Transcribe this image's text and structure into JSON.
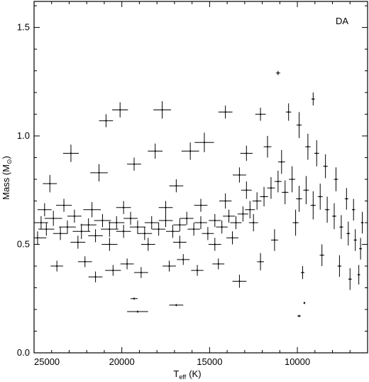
{
  "chart_data": {
    "type": "scatter",
    "title": "",
    "panel_label": "DA",
    "xlabel": {
      "main": "T",
      "sub": "eff",
      "unit": "(K)"
    },
    "ylabel": {
      "main": "Mass (M",
      "sun": "⊙",
      "close": ")"
    },
    "xlim": [
      25000,
      6000
    ],
    "x_reversed": true,
    "ylim": [
      0.0,
      1.62
    ],
    "x_ticks": [
      25000,
      20000,
      15000,
      10000
    ],
    "x_tick_labels": [
      "25000",
      "20000",
      "15000",
      "10000"
    ],
    "y_ticks": [
      0.0,
      0.5,
      1.0,
      1.5
    ],
    "y_tick_labels": [
      "0.0",
      "0.5",
      "1.0",
      "1.5"
    ],
    "error_bars": "x and y",
    "grid": false,
    "series": [
      {
        "name": "",
        "points": [
          [
            24600,
            0.6,
            400,
            0.03
          ],
          [
            24300,
            0.57,
            450,
            0.03
          ],
          [
            23900,
            0.62,
            500,
            0.035
          ],
          [
            23500,
            0.55,
            420,
            0.03
          ],
          [
            23100,
            0.58,
            480,
            0.03
          ],
          [
            22700,
            0.63,
            400,
            0.03
          ],
          [
            22300,
            0.56,
            500,
            0.035
          ],
          [
            21900,
            0.59,
            450,
            0.03
          ],
          [
            21500,
            0.54,
            420,
            0.03
          ],
          [
            21100,
            0.61,
            480,
            0.03
          ],
          [
            20700,
            0.57,
            500,
            0.035
          ],
          [
            20300,
            0.6,
            450,
            0.03
          ],
          [
            19900,
            0.56,
            420,
            0.03
          ],
          [
            19500,
            0.62,
            400,
            0.03
          ],
          [
            19100,
            0.58,
            450,
            0.03
          ],
          [
            18700,
            0.55,
            420,
            0.03
          ],
          [
            18300,
            0.6,
            400,
            0.03
          ],
          [
            17900,
            0.57,
            380,
            0.03
          ],
          [
            17500,
            0.61,
            400,
            0.03
          ],
          [
            17100,
            0.56,
            380,
            0.03
          ],
          [
            16700,
            0.59,
            360,
            0.03
          ],
          [
            16300,
            0.62,
            380,
            0.03
          ],
          [
            15900,
            0.57,
            350,
            0.03
          ],
          [
            15500,
            0.6,
            360,
            0.03
          ],
          [
            15100,
            0.55,
            340,
            0.03
          ],
          [
            14700,
            0.61,
            350,
            0.03
          ],
          [
            14300,
            0.58,
            330,
            0.03
          ],
          [
            13900,
            0.63,
            340,
            0.03
          ],
          [
            13500,
            0.6,
            320,
            0.03
          ],
          [
            13100,
            0.64,
            300,
            0.035
          ],
          [
            12700,
            0.66,
            280,
            0.04
          ],
          [
            12300,
            0.7,
            250,
            0.04
          ],
          [
            11900,
            0.72,
            230,
            0.045
          ],
          [
            11500,
            0.76,
            220,
            0.05
          ],
          [
            11100,
            0.79,
            200,
            0.05
          ],
          [
            10700,
            0.74,
            190,
            0.055
          ],
          [
            10300,
            0.8,
            180,
            0.06
          ],
          [
            9900,
            0.71,
            170,
            0.06
          ],
          [
            9500,
            0.75,
            160,
            0.065
          ],
          [
            9100,
            0.68,
            150,
            0.065
          ],
          [
            8700,
            0.72,
            140,
            0.06
          ],
          [
            8300,
            0.66,
            130,
            0.06
          ],
          [
            7900,
            0.63,
            120,
            0.06
          ],
          [
            7500,
            0.58,
            110,
            0.055
          ],
          [
            7100,
            0.55,
            100,
            0.055
          ],
          [
            6700,
            0.52,
            90,
            0.05
          ],
          [
            6400,
            0.48,
            80,
            0.05
          ],
          [
            24100,
            0.78,
            400,
            0.04
          ],
          [
            22900,
            0.92,
            450,
            0.04
          ],
          [
            21300,
            0.83,
            500,
            0.04
          ],
          [
            20900,
            1.07,
            400,
            0.03
          ],
          [
            20100,
            1.12,
            450,
            0.035
          ],
          [
            19300,
            0.87,
            400,
            0.03
          ],
          [
            18100,
            0.93,
            420,
            0.035
          ],
          [
            17700,
            1.12,
            500,
            0.04
          ],
          [
            16900,
            0.77,
            400,
            0.03
          ],
          [
            16100,
            0.93,
            500,
            0.04
          ],
          [
            15300,
            0.97,
            550,
            0.045
          ],
          [
            14100,
            1.11,
            400,
            0.03
          ],
          [
            13300,
            0.82,
            380,
            0.035
          ],
          [
            12900,
            0.92,
            350,
            0.035
          ],
          [
            12100,
            1.1,
            300,
            0.03
          ],
          [
            11100,
            1.29,
            120,
            0.01
          ],
          [
            10500,
            1.11,
            150,
            0.04
          ],
          [
            9100,
            1.17,
            100,
            0.03
          ],
          [
            23700,
            0.4,
            350,
            0.025
          ],
          [
            22100,
            0.42,
            400,
            0.025
          ],
          [
            21500,
            0.35,
            400,
            0.025
          ],
          [
            20500,
            0.38,
            450,
            0.025
          ],
          [
            19700,
            0.41,
            380,
            0.025
          ],
          [
            18900,
            0.37,
            400,
            0.025
          ],
          [
            17300,
            0.4,
            380,
            0.025
          ],
          [
            16500,
            0.43,
            360,
            0.025
          ],
          [
            15700,
            0.38,
            350,
            0.025
          ],
          [
            14500,
            0.41,
            340,
            0.025
          ],
          [
            13300,
            0.33,
            400,
            0.03
          ],
          [
            12100,
            0.42,
            200,
            0.04
          ],
          [
            19100,
            0.19,
            600,
            0.005
          ],
          [
            16900,
            0.22,
            400,
            0.005
          ],
          [
            19300,
            0.25,
            200,
            0.005
          ],
          [
            9900,
            0.17,
            100,
            0.005
          ],
          [
            9700,
            0.37,
            100,
            0.03
          ],
          [
            9600,
            0.23,
            50,
            0.005
          ],
          [
            9900,
            1.05,
            150,
            0.06
          ],
          [
            9400,
            0.95,
            150,
            0.06
          ],
          [
            8900,
            0.92,
            140,
            0.06
          ],
          [
            8400,
            0.86,
            130,
            0.055
          ],
          [
            7800,
            0.8,
            120,
            0.055
          ],
          [
            7200,
            0.71,
            100,
            0.05
          ],
          [
            6800,
            0.66,
            90,
            0.05
          ],
          [
            6300,
            0.6,
            80,
            0.05
          ],
          [
            8600,
            0.45,
            130,
            0.05
          ],
          [
            7600,
            0.4,
            110,
            0.05
          ],
          [
            7000,
            0.34,
            100,
            0.05
          ],
          [
            6500,
            0.36,
            80,
            0.045
          ],
          [
            11700,
            0.95,
            220,
            0.05
          ],
          [
            10900,
            0.88,
            200,
            0.055
          ],
          [
            11300,
            0.52,
            200,
            0.05
          ],
          [
            10100,
            0.6,
            170,
            0.06
          ],
          [
            24800,
            0.53,
            500,
            0.03
          ],
          [
            24400,
            0.66,
            400,
            0.03
          ],
          [
            23300,
            0.68,
            450,
            0.03
          ],
          [
            22500,
            0.51,
            420,
            0.03
          ],
          [
            21700,
            0.66,
            500,
            0.035
          ],
          [
            20700,
            0.5,
            450,
            0.03
          ],
          [
            19900,
            0.67,
            420,
            0.03
          ],
          [
            18500,
            0.5,
            400,
            0.03
          ],
          [
            17500,
            0.67,
            400,
            0.03
          ],
          [
            16700,
            0.51,
            380,
            0.03
          ],
          [
            15500,
            0.68,
            380,
            0.03
          ],
          [
            14700,
            0.5,
            360,
            0.03
          ],
          [
            14100,
            0.7,
            350,
            0.035
          ],
          [
            13700,
            0.53,
            340,
            0.03
          ],
          [
            12900,
            0.75,
            300,
            0.04
          ],
          [
            12500,
            0.6,
            260,
            0.04
          ]
        ]
      }
    ]
  }
}
